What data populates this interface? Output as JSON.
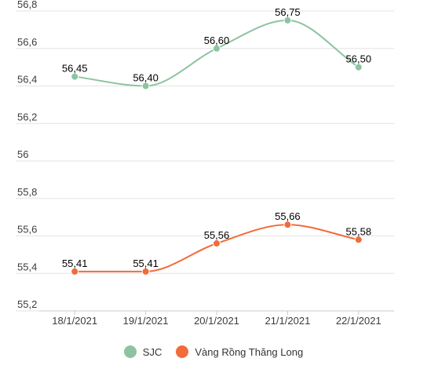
{
  "chart_data": {
    "type": "line",
    "categories": [
      "18/1/2021",
      "19/1/2021",
      "20/1/2021",
      "21/1/2021",
      "22/1/2021"
    ],
    "series": [
      {
        "name": "SJC",
        "color": "#8cc4a0",
        "values": [
          56.45,
          56.4,
          56.6,
          56.75,
          56.5
        ],
        "labels": [
          "56,45",
          "56,40",
          "56,60",
          "56,75",
          "56,50"
        ]
      },
      {
        "name": "Vàng Rồng Thăng Long",
        "color": "#f26b3a",
        "values": [
          55.41,
          55.41,
          55.56,
          55.66,
          55.58
        ],
        "labels": [
          "55,41",
          "55,41",
          "55,56",
          "55,66",
          "55,58"
        ]
      }
    ],
    "yticks": [
      55.2,
      55.4,
      55.6,
      55.8,
      56,
      56.2,
      56.4,
      56.6,
      56.8
    ],
    "ytick_labels": [
      "55,2",
      "55,4",
      "55,6",
      "55,8",
      "56",
      "56,2",
      "56,4",
      "56,6",
      "56,8"
    ],
    "ylim": [
      55.2,
      56.8
    ],
    "grid": true,
    "legend_position": "bottom-center"
  }
}
